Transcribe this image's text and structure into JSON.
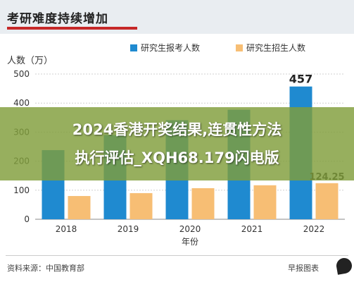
{
  "header": {
    "title": "考研难度持续增加"
  },
  "chart_data": {
    "type": "bar",
    "ylabel": "人数（万）",
    "xlabel": "年份",
    "categories": [
      "2018",
      "2019",
      "2020",
      "2021",
      "2022"
    ],
    "series": [
      {
        "name": "研究生报考人数",
        "color": "#1f8ad0",
        "values": [
          238,
          290,
          341,
          377,
          457
        ]
      },
      {
        "name": "研究生招生人数",
        "color": "#f7be74",
        "values": [
          80,
          90,
          107,
          117,
          124.25
        ]
      }
    ],
    "data_labels": [
      {
        "series": 0,
        "index": 4,
        "text": "457"
      },
      {
        "series": 1,
        "index": 4,
        "text": "124.25"
      }
    ],
    "ylim": [
      0,
      500
    ],
    "yticks": [
      "0",
      "100",
      "200",
      "300",
      "400",
      "500"
    ],
    "grid": true,
    "legend_position": "top"
  },
  "overlay": {
    "line1": "2024香港开奖结果,连贯性方法",
    "line2": "执行评估_XQH68.179闪电版"
  },
  "footer": {
    "source": "资料来源：中国教育部",
    "publisher": "早报图表"
  }
}
